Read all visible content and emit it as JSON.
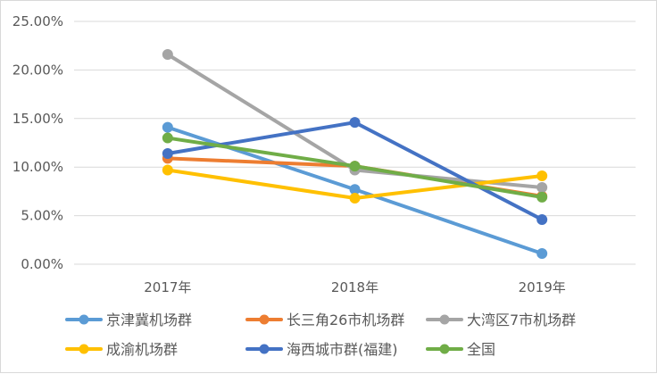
{
  "chart_data": {
    "type": "line",
    "categories": [
      "2017年",
      "2018年",
      "2019年"
    ],
    "ylim": [
      0,
      0.25
    ],
    "y_ticks": [
      "0.00%",
      "5.00%",
      "10.00%",
      "15.00%",
      "20.00%",
      "25.00%"
    ],
    "grid": true,
    "legend_position": "bottom",
    "series": [
      {
        "name": "京津冀机场群",
        "color": "#5b9bd5",
        "values": [
          0.141,
          0.077,
          0.011
        ]
      },
      {
        "name": "长三角26市机场群",
        "color": "#ed7d31",
        "values": [
          0.109,
          0.101,
          0.07
        ]
      },
      {
        "name": "大湾区7市机场群",
        "color": "#a5a5a5",
        "values": [
          0.216,
          0.097,
          0.079
        ]
      },
      {
        "name": "成渝机场群",
        "color": "#ffc000",
        "values": [
          0.097,
          0.068,
          0.091
        ]
      },
      {
        "name": "海西城市群(福建)",
        "color": "#4472c4",
        "values": [
          0.114,
          0.146,
          0.046
        ]
      },
      {
        "name": "全国",
        "color": "#70ad47",
        "values": [
          0.13,
          0.101,
          0.069
        ]
      }
    ]
  }
}
